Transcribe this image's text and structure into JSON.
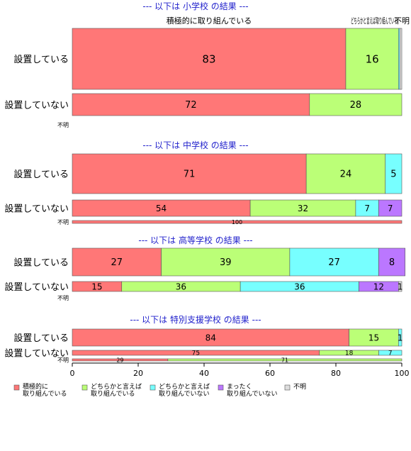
{
  "chart_data": {
    "type": "bar",
    "orientation": "horizontal",
    "stacked": "percent",
    "xlim": [
      0,
      100
    ],
    "xticks": [
      0,
      20,
      40,
      60,
      80,
      100
    ],
    "grid": false,
    "legend_position": "bottom",
    "categories_order": [
      "積極的に取り組んでいる",
      "どちらかと言えば取り組んでいる",
      "どちらかと言えば取り組んでいない",
      "まったく取り組んでいない",
      "不明"
    ],
    "colors": [
      "#ff7777",
      "#bbff77",
      "#77ffff",
      "#bb77ff",
      "#dddddd"
    ],
    "legend": [
      {
        "line1": "積極的に",
        "line2": "取り組んでいる"
      },
      {
        "line1": "どちらかと言えば",
        "line2": "取り組んでいる"
      },
      {
        "line1": "どちらかと言えば",
        "line2": "取り組んでいない"
      },
      {
        "line1": "まったく",
        "line2": "取り組んでいない"
      },
      {
        "line1": "不明",
        "line2": ""
      }
    ],
    "top_annotations": [
      "積極的に取り組んでいる",
      "どちらかと言えば取り組んでいる",
      "不明"
    ],
    "sections": [
      {
        "title": "--- 以下は 小学校 の結果 ---",
        "rows": [
          {
            "label": "設置している",
            "values": [
              83,
              16,
              0.4,
              0,
              0.6
            ],
            "labels": [
              "83",
              "16",
              "",
              "",
              ""
            ]
          },
          {
            "label": "設置していない",
            "values": [
              72,
              28,
              0,
              0,
              0
            ],
            "labels": [
              "72",
              "28",
              "",
              "",
              ""
            ]
          },
          {
            "label": "不明",
            "values": [
              0,
              0,
              0,
              0,
              0
            ],
            "labels": [
              "",
              "",
              "",
              "",
              ""
            ]
          }
        ]
      },
      {
        "title": "--- 以下は 中学校 の結果 ---",
        "rows": [
          {
            "label": "設置している",
            "values": [
              71,
              24,
              5,
              0,
              0
            ],
            "labels": [
              "71",
              "24",
              "5",
              "",
              ""
            ]
          },
          {
            "label": "設置していない",
            "values": [
              54,
              32,
              7,
              7,
              0
            ],
            "labels": [
              "54",
              "32",
              "7",
              "7",
              ""
            ]
          },
          {
            "label": "不明",
            "values": [
              100,
              0,
              0,
              0,
              0
            ],
            "labels": [
              "100",
              "",
              "",
              "",
              ""
            ]
          }
        ]
      },
      {
        "title": "--- 以下は 高等学校 の結果 ---",
        "rows": [
          {
            "label": "設置している",
            "values": [
              27,
              39,
              27,
              8,
              0
            ],
            "labels": [
              "27",
              "39",
              "27",
              "8",
              ""
            ]
          },
          {
            "label": "設置していない",
            "values": [
              15,
              36,
              36,
              12,
              1
            ],
            "labels": [
              "15",
              "36",
              "36",
              "12",
              "1"
            ]
          },
          {
            "label": "不明",
            "values": [
              0,
              0,
              0,
              0,
              0
            ],
            "labels": [
              "",
              "",
              "",
              "",
              ""
            ]
          }
        ]
      },
      {
        "title": "--- 以下は 特別支援学校 の結果 ---",
        "rows": [
          {
            "label": "設置している",
            "values": [
              84,
              15,
              1,
              0,
              0
            ],
            "labels": [
              "84",
              "15",
              "1",
              "",
              ""
            ]
          },
          {
            "label": "設置していない",
            "values": [
              75,
              18,
              7,
              0,
              0
            ],
            "labels": [
              "75",
              "18",
              "7",
              "",
              ""
            ]
          },
          {
            "label": "不明",
            "values": [
              29,
              71,
              0,
              0,
              0
            ],
            "labels": [
              "29",
              "71",
              "",
              "",
              ""
            ]
          }
        ]
      }
    ]
  }
}
